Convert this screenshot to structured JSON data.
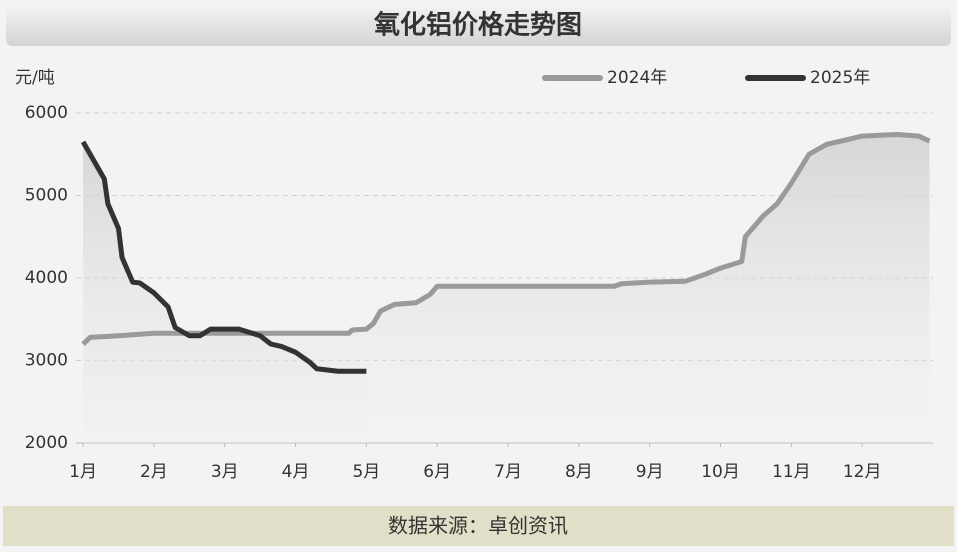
{
  "chart_data": {
    "type": "line",
    "title": "氧化铝价格走势图",
    "y_label": "元/吨",
    "source": "数据来源：卓创资讯",
    "xlim": [
      0.9,
      13.0
    ],
    "xticks": [
      {
        "value": 1,
        "label": "1月"
      },
      {
        "value": 2,
        "label": "2月"
      },
      {
        "value": 3,
        "label": "3月"
      },
      {
        "value": 4,
        "label": "4月"
      },
      {
        "value": 5,
        "label": "5月"
      },
      {
        "value": 6,
        "label": "6月"
      },
      {
        "value": 7,
        "label": "7月"
      },
      {
        "value": 8,
        "label": "8月"
      },
      {
        "value": 9,
        "label": "9月"
      },
      {
        "value": 10,
        "label": "10月"
      },
      {
        "value": 11,
        "label": "11月"
      },
      {
        "value": 12,
        "label": "12月"
      }
    ],
    "ylim": [
      2000,
      6000
    ],
    "yticks": [
      2000,
      3000,
      4000,
      5000,
      6000
    ],
    "grid": true,
    "series": [
      {
        "name": "2024年",
        "color": "#9a9a9a",
        "x": [
          1.0,
          1.1,
          1.5,
          2.0,
          3.0,
          4.0,
          4.75,
          4.8,
          5.0,
          5.1,
          5.2,
          5.4,
          5.7,
          5.9,
          6.0,
          7.0,
          8.0,
          8.5,
          8.6,
          9.0,
          9.5,
          9.8,
          10.0,
          10.3,
          10.35,
          10.6,
          10.8,
          11.0,
          11.25,
          11.5,
          11.8,
          12.0,
          12.5,
          12.8,
          12.95
        ],
        "values": [
          3200,
          3280,
          3300,
          3330,
          3330,
          3330,
          3330,
          3370,
          3380,
          3450,
          3600,
          3680,
          3700,
          3800,
          3900,
          3900,
          3900,
          3900,
          3930,
          3950,
          3960,
          4050,
          4120,
          4200,
          4500,
          4750,
          4900,
          5150,
          5500,
          5620,
          5680,
          5720,
          5740,
          5720,
          5660
        ]
      },
      {
        "name": "2025年",
        "color": "#333333",
        "x": [
          1.0,
          1.1,
          1.2,
          1.3,
          1.35,
          1.5,
          1.55,
          1.7,
          1.8,
          2.0,
          2.2,
          2.3,
          2.5,
          2.65,
          2.8,
          3.2,
          3.5,
          3.65,
          3.8,
          4.0,
          4.2,
          4.3,
          4.6,
          5.0
        ],
        "values": [
          5650,
          5500,
          5350,
          5200,
          4900,
          4600,
          4250,
          3950,
          3940,
          3820,
          3650,
          3400,
          3300,
          3300,
          3380,
          3380,
          3300,
          3200,
          3170,
          3100,
          2980,
          2900,
          2870,
          2870
        ]
      }
    ]
  }
}
